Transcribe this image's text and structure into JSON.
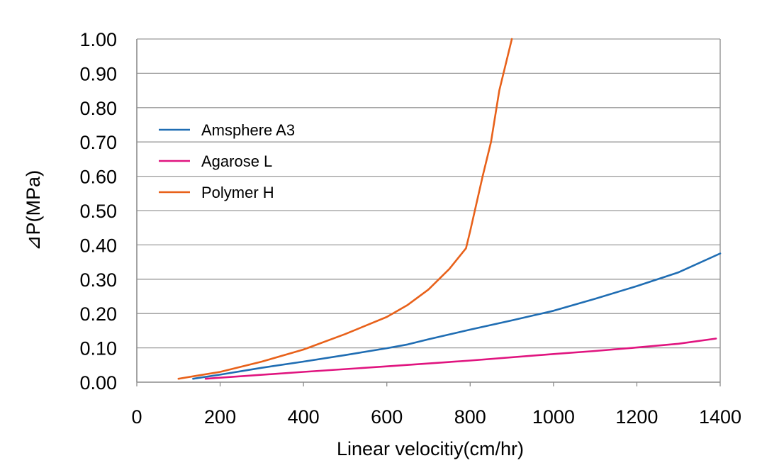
{
  "chart_data": {
    "type": "line",
    "title": "",
    "xlabel": "Linear velocitiy(cm/hr)",
    "ylabel": "⊿P(MPa)",
    "xlim": [
      0,
      1400
    ],
    "ylim": [
      0,
      1.0
    ],
    "xticks": [
      "0",
      "200",
      "400",
      "600",
      "800",
      "1000",
      "1200",
      "1400"
    ],
    "yticks": [
      "0.00",
      "0.10",
      "0.20",
      "0.30",
      "0.40",
      "0.50",
      "0.60",
      "0.70",
      "0.80",
      "0.90",
      "1.00"
    ],
    "grid": "horizontal",
    "legend_position": "upper-left",
    "series": [
      {
        "name": "Amsphere A3",
        "color": "#1f6db3",
        "x": [
          135,
          200,
          300,
          400,
          500,
          600,
          650,
          700,
          800,
          900,
          1000,
          1100,
          1200,
          1300,
          1400
        ],
        "y": [
          0.01,
          0.022,
          0.042,
          0.06,
          0.079,
          0.099,
          0.11,
          0.125,
          0.153,
          0.18,
          0.208,
          0.243,
          0.28,
          0.32,
          0.375
        ]
      },
      {
        "name": "Agarose L",
        "color": "#e0147f",
        "x": [
          165,
          200,
          400,
          600,
          800,
          1000,
          1100,
          1200,
          1300,
          1390
        ],
        "y": [
          0.01,
          0.013,
          0.03,
          0.046,
          0.063,
          0.082,
          0.091,
          0.101,
          0.112,
          0.127
        ]
      },
      {
        "name": "Polymer H",
        "color": "#e8611a",
        "x": [
          100,
          150,
          200,
          300,
          400,
          500,
          600,
          650,
          700,
          750,
          790,
          800,
          830,
          850,
          870,
          900
        ],
        "y": [
          0.01,
          0.02,
          0.03,
          0.06,
          0.095,
          0.14,
          0.19,
          0.225,
          0.27,
          0.33,
          0.39,
          0.44,
          0.6,
          0.7,
          0.85,
          1.0
        ]
      }
    ]
  }
}
